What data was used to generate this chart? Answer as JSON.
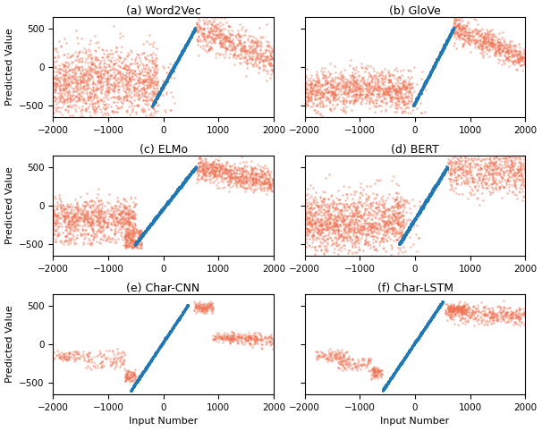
{
  "titles": [
    "(a) Word2Vec",
    "(b) GloVe",
    "(c) ELMo",
    "(d) BERT",
    "(e) Char-CNN",
    "(f) Char-LSTM"
  ],
  "xlabel": "Input Number",
  "ylabel": "Predicted Value",
  "xlim": [
    -2000,
    2000
  ],
  "ylim": [
    -650,
    650
  ],
  "blue_color": "#1f77b4",
  "orange_color": "#f07050",
  "dot_size": 3,
  "blue_alpha": 1.0,
  "orange_alpha": 0.5
}
